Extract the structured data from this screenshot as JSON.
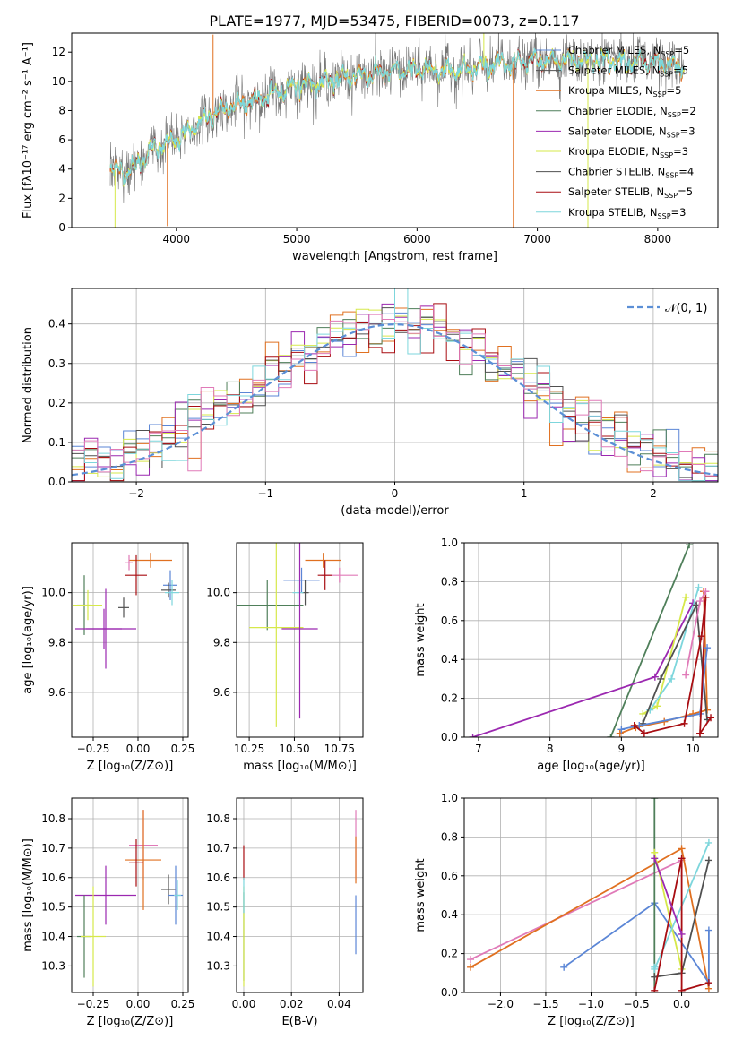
{
  "title": "PLATE=1977, MJD=53475, FIBERID=0073, z=0.117",
  "colors": {
    "gray": "#777777",
    "blue": "#5b86d6",
    "orange": "#e07020",
    "green": "#4f7f5a",
    "purple": "#9b28b0",
    "yellow": "#d6e84a",
    "dark": "#505050",
    "red": "#a80d12",
    "cyan": "#7dd6dc",
    "pink": "#e07ab8",
    "gaussian": "#5b8fd6"
  },
  "chart_data": [
    {
      "id": "spectrum",
      "type": "line",
      "xlabel": "wavelength [Angstrom, rest frame]",
      "ylabel": "Flux [fλ10⁻¹⁷ erg cm⁻² s⁻¹ A⁻¹]",
      "xlim": [
        3130,
        8500
      ],
      "ylim": [
        0,
        13.3
      ],
      "xticks": [
        4000,
        5000,
        6000,
        7000,
        8000
      ],
      "yticks": [
        0,
        2,
        4,
        6,
        8,
        10,
        12
      ],
      "grid": false,
      "legend_position": "right",
      "legend": [
        {
          "label": "Chabrier MILES, N",
          "sub": "SSP",
          "suffix": "=5",
          "color": "blue"
        },
        {
          "label": "Salpeter MILES, N",
          "sub": "SSP",
          "suffix": "=5",
          "color": "dark"
        },
        {
          "label": "Kroupa MILES, N",
          "sub": "SSP",
          "suffix": "=5",
          "color": "orange"
        },
        {
          "label": "Chabrier ELODIE, N",
          "sub": "SSP",
          "suffix": "=2",
          "color": "green"
        },
        {
          "label": "Salpeter ELODIE, N",
          "sub": "SSP",
          "suffix": "=3",
          "color": "purple"
        },
        {
          "label": "Kroupa ELODIE, N",
          "sub": "SSP",
          "suffix": "=3",
          "color": "yellow"
        },
        {
          "label": "Chabrier STELIB, N",
          "sub": "SSP",
          "suffix": "=4",
          "color": "dark"
        },
        {
          "label": "Salpeter STELIB, N",
          "sub": "SSP",
          "suffix": "=5",
          "color": "red"
        },
        {
          "label": "Kroupa STELIB, N",
          "sub": "SSP",
          "suffix": "=3",
          "color": "cyan"
        }
      ],
      "wavelength_range": [
        3450,
        8220
      ],
      "continuum_anchors": [
        [
          3450,
          4.0
        ],
        [
          3600,
          3.8
        ],
        [
          3800,
          5.3
        ],
        [
          4000,
          6.0
        ],
        [
          4200,
          7.2
        ],
        [
          4400,
          8.2
        ],
        [
          4600,
          8.6
        ],
        [
          4800,
          9.1
        ],
        [
          5000,
          9.8
        ],
        [
          5200,
          9.9
        ],
        [
          5500,
          10.4
        ],
        [
          6000,
          10.8
        ],
        [
          6400,
          10.8
        ],
        [
          6600,
          11.1
        ],
        [
          7000,
          11.4
        ],
        [
          7500,
          11.5
        ],
        [
          8000,
          11.2
        ],
        [
          8220,
          11.0
        ]
      ]
    },
    {
      "id": "residuals",
      "type": "histogram",
      "xlabel": "(data-model)/error",
      "ylabel": "Normed distribution",
      "xlim": [
        -2.5,
        2.5
      ],
      "ylim": [
        0,
        0.49
      ],
      "xticks": [
        -2,
        -1,
        0,
        1,
        2
      ],
      "xtick_labels": [
        "−2",
        "−1",
        "0",
        "1",
        "2"
      ],
      "yticks": [
        0.0,
        0.1,
        0.2,
        0.3,
        0.4
      ],
      "grid": true,
      "legend_position": "top-right",
      "legend_label": "𝒩(0, 1)",
      "bin_width": 0.1,
      "series_colors": [
        "blue",
        "orange",
        "green",
        "purple",
        "yellow",
        "dark",
        "red",
        "cyan",
        "pink"
      ]
    },
    {
      "id": "age_vs_Z",
      "type": "errorbar",
      "xlabel": "Z [log₁₀(Z/Z⊙)]",
      "ylabel": "age  [log₁₀(age/yr)]",
      "xlim": [
        -0.37,
        0.28
      ],
      "ylim": [
        9.42,
        10.2
      ],
      "xticks": [
        -0.25,
        0.0,
        0.25
      ],
      "xtick_labels": [
        "−0.25",
        "0.00",
        "0.25"
      ],
      "yticks": [
        9.6,
        9.8,
        10.0
      ],
      "grid": true,
      "points": [
        {
          "color": "orange",
          "x": 0.07,
          "xerr": 0.12,
          "y": 10.13,
          "yerr": 0.03
        },
        {
          "color": "pink",
          "x": -0.05,
          "xerr": 0.02,
          "y": 10.12,
          "yerr": 0.03
        },
        {
          "color": "red",
          "x": -0.01,
          "xerr": 0.06,
          "y": 10.07,
          "yerr": 0.08
        },
        {
          "color": "blue",
          "x": 0.18,
          "xerr": 0.04,
          "y": 10.03,
          "yerr": 0.06
        },
        {
          "color": "dark",
          "x": 0.17,
          "xerr": 0.04,
          "y": 10.01,
          "yerr": 0.03
        },
        {
          "color": "cyan",
          "x": 0.19,
          "xerr": 0.04,
          "y": 10.0,
          "yerr": 0.05
        },
        {
          "color": "green",
          "x": -0.3,
          "xerr": 0.04,
          "y": 9.95,
          "yerr": 0.12
        },
        {
          "color": "yellow",
          "x": -0.28,
          "xerr": 0.08,
          "y": 9.95,
          "yerr": 0.06
        },
        {
          "color": "dark",
          "x": -0.08,
          "xerr": 0.03,
          "y": 9.94,
          "yerr": 0.04
        },
        {
          "color": "purple",
          "x": -0.18,
          "xerr": 0.17,
          "y": 9.855,
          "yerr": 0.16
        },
        {
          "color": "purple",
          "x": -0.19,
          "xerr": 0.1,
          "y": 9.855,
          "yerr": 0.08
        }
      ]
    },
    {
      "id": "age_vs_mass",
      "type": "errorbar",
      "xlabel": "mass [log₁₀(M/M⊙)]",
      "ylabel": "",
      "xlim": [
        10.18,
        10.88
      ],
      "ylim": [
        9.42,
        10.2
      ],
      "xticks": [
        10.25,
        10.5,
        10.75
      ],
      "xtick_labels": [
        "10.25",
        "10.50",
        "10.75"
      ],
      "yticks": [
        9.6,
        9.8,
        10.0
      ],
      "grid": true,
      "points": [
        {
          "color": "orange",
          "x": 10.66,
          "xerr": 0.1,
          "y": 10.13,
          "yerr": 0.03
        },
        {
          "color": "pink",
          "x": 10.75,
          "xerr": 0.1,
          "y": 10.07,
          "yerr": 0.03
        },
        {
          "color": "red",
          "x": 10.67,
          "xerr": 0.04,
          "y": 10.07,
          "yerr": 0.06
        },
        {
          "color": "blue",
          "x": 10.54,
          "xerr": 0.1,
          "y": 10.05,
          "yerr": 0.05
        },
        {
          "color": "dark",
          "x": 10.56,
          "xerr": 0.02,
          "y": 10.0,
          "yerr": 0.05
        },
        {
          "color": "cyan",
          "x": 10.52,
          "xerr": 0.03,
          "y": 10.0,
          "yerr": 0.05
        },
        {
          "color": "green",
          "x": 10.35,
          "xerr": 0.2,
          "y": 9.95,
          "yerr": 0.1
        },
        {
          "color": "yellow",
          "x": 10.4,
          "xerr": 0.15,
          "y": 9.86,
          "yerr": 0.4
        },
        {
          "color": "purple",
          "x": 10.53,
          "xerr": 0.1,
          "y": 9.855,
          "yerr": 0.36
        }
      ]
    },
    {
      "id": "weight_vs_age",
      "type": "line",
      "xlabel": "age  [log₁₀(age/yr)]",
      "ylabel": "mass weight",
      "xlim": [
        6.8,
        10.35
      ],
      "ylim": [
        0.0,
        1.0
      ],
      "xticks": [
        7,
        8,
        9,
        10
      ],
      "yticks": [
        0.0,
        0.2,
        0.4,
        0.6,
        0.8,
        1.0
      ],
      "grid": true,
      "series": [
        {
          "color": "green",
          "x": [
            8.85,
            9.95
          ],
          "y": [
            0.0,
            0.99
          ]
        },
        {
          "color": "purple",
          "x": [
            6.92,
            9.47,
            10.0
          ],
          "y": [
            0.0,
            0.31,
            0.69
          ]
        },
        {
          "color": "orange",
          "x": [
            8.98,
            9.2,
            9.6,
            10.0,
            10.2,
            10.15
          ],
          "y": [
            0.02,
            0.05,
            0.08,
            0.12,
            0.14,
            0.75
          ]
        },
        {
          "color": "yellow",
          "x": [
            9.3,
            9.5,
            9.9
          ],
          "y": [
            0.12,
            0.16,
            0.72
          ]
        },
        {
          "color": "cyan",
          "x": [
            9.4,
            9.7,
            10.08
          ],
          "y": [
            0.14,
            0.3,
            0.77
          ]
        },
        {
          "color": "dark",
          "x": [
            9.3,
            9.55,
            10.05,
            10.2
          ],
          "y": [
            0.07,
            0.3,
            0.68,
            0.09
          ]
        },
        {
          "color": "blue",
          "x": [
            9.0,
            9.25,
            10.1,
            10.2
          ],
          "y": [
            0.04,
            0.06,
            0.12,
            0.46
          ]
        },
        {
          "color": "red",
          "x": [
            9.18,
            9.32,
            9.88,
            10.12,
            10.18,
            10.1,
            10.25
          ],
          "y": [
            0.06,
            0.02,
            0.07,
            0.52,
            0.72,
            0.02,
            0.1
          ]
        },
        {
          "color": "pink",
          "x": [
            9.9,
            10.1,
            10.18
          ],
          "y": [
            0.32,
            0.7,
            0.75
          ]
        }
      ]
    },
    {
      "id": "mass_vs_Z",
      "type": "errorbar",
      "xlabel": "Z [log₁₀(Z/Z⊙)]",
      "ylabel": "mass [log₁₀(M/M⊙)]",
      "xlim": [
        -0.37,
        0.28
      ],
      "ylim": [
        10.21,
        10.87
      ],
      "xticks": [
        -0.25,
        0.0,
        0.25
      ],
      "xtick_labels": [
        "−0.25",
        "0.00",
        "0.25"
      ],
      "yticks": [
        10.3,
        10.4,
        10.5,
        10.6,
        10.7,
        10.8
      ],
      "grid": true,
      "points": [
        {
          "color": "pink",
          "x": 0.03,
          "xerr": 0.08,
          "y": 10.71,
          "yerr": 0.12
        },
        {
          "color": "orange",
          "x": 0.03,
          "xerr": 0.1,
          "y": 10.66,
          "yerr": 0.17
        },
        {
          "color": "red",
          "x": -0.01,
          "xerr": 0.04,
          "y": 10.65,
          "yerr": 0.08
        },
        {
          "color": "dark",
          "x": 0.17,
          "xerr": 0.04,
          "y": 10.56,
          "yerr": 0.05
        },
        {
          "color": "blue",
          "x": 0.21,
          "xerr": 0.04,
          "y": 10.54,
          "yerr": 0.1
        },
        {
          "color": "cyan",
          "x": 0.22,
          "xerr": 0.02,
          "y": 10.54,
          "yerr": 0.05
        },
        {
          "color": "purple",
          "x": -0.18,
          "xerr": 0.17,
          "y": 10.54,
          "yerr": 0.1
        },
        {
          "color": "green",
          "x": -0.3,
          "xerr": 0.04,
          "y": 10.4,
          "yerr": 0.14
        },
        {
          "color": "yellow",
          "x": -0.25,
          "xerr": 0.07,
          "y": 10.4,
          "yerr": 0.17
        }
      ]
    },
    {
      "id": "mass_vs_ebv",
      "type": "errorbar",
      "xlabel": "E(B-V)",
      "ylabel": "",
      "xlim": [
        -0.003,
        0.05
      ],
      "ylim": [
        10.21,
        10.87
      ],
      "xticks": [
        0.0,
        0.02,
        0.04
      ],
      "xtick_labels": [
        "0.00",
        "0.02",
        "0.04"
      ],
      "yticks": [
        10.3,
        10.4,
        10.5,
        10.6,
        10.7,
        10.8
      ],
      "grid": true,
      "points": [
        {
          "color": "red",
          "x": 0.0,
          "xerr": 0,
          "y": 10.65,
          "yerr": 0.06
        },
        {
          "color": "green",
          "x": 0.0,
          "xerr": 0,
          "y": 10.4,
          "yerr": 0.15
        },
        {
          "color": "yellow",
          "x": 0.0,
          "xerr": 0,
          "y": 10.4,
          "yerr": 0.17
        },
        {
          "color": "cyan",
          "x": 0.0,
          "xerr": 0,
          "y": 10.54,
          "yerr": 0.06
        },
        {
          "color": "pink",
          "x": 0.047,
          "xerr": 0,
          "y": 10.71,
          "yerr": 0.12
        },
        {
          "color": "orange",
          "x": 0.047,
          "xerr": 0,
          "y": 10.66,
          "yerr": 0.08
        },
        {
          "color": "blue",
          "x": 0.047,
          "xerr": 0,
          "y": 10.44,
          "yerr": 0.1
        }
      ]
    },
    {
      "id": "weight_vs_Z",
      "type": "line",
      "xlabel": "Z [log₁₀(Z/Z⊙)]",
      "ylabel": "mass weight",
      "xlim": [
        -2.4,
        0.4
      ],
      "ylim": [
        0.0,
        1.0
      ],
      "xticks": [
        -2.0,
        -1.5,
        -1.0,
        -0.5,
        0.0
      ],
      "xtick_labels": [
        "−2.0",
        "−1.5",
        "−1.0",
        "−0.5",
        "0.0"
      ],
      "yticks": [
        0.0,
        0.2,
        0.4,
        0.6,
        0.8,
        1.0
      ],
      "grid": true,
      "series": [
        {
          "color": "pink",
          "x": [
            -2.33,
            0.0
          ],
          "y": [
            0.17,
            0.68
          ]
        },
        {
          "color": "orange",
          "x": [
            -2.33,
            0.0,
            0.3
          ],
          "y": [
            0.13,
            0.74,
            0.02
          ]
        },
        {
          "color": "blue",
          "x": [
            -1.3,
            -0.3,
            0.3,
            0.3
          ],
          "y": [
            0.13,
            0.46,
            0.05,
            0.32
          ]
        },
        {
          "color": "green",
          "x": [
            -0.3,
            -0.3
          ],
          "y": [
            0.0,
            1.0
          ]
        },
        {
          "color": "yellow",
          "x": [
            -0.3,
            0.0
          ],
          "y": [
            0.72,
            0.12
          ]
        },
        {
          "color": "cyan",
          "x": [
            -0.3,
            -0.3,
            0.3
          ],
          "y": [
            0.13,
            0.12,
            0.77
          ]
        },
        {
          "color": "dark",
          "x": [
            -0.3,
            0.0,
            0.3
          ],
          "y": [
            0.08,
            0.1,
            0.68
          ]
        },
        {
          "color": "red",
          "x": [
            -0.3,
            0.0,
            0.0,
            0.3
          ],
          "y": [
            0.01,
            0.69,
            0.01,
            0.05
          ]
        },
        {
          "color": "purple",
          "x": [
            -0.3,
            0.0
          ],
          "y": [
            0.69,
            0.3
          ]
        }
      ]
    }
  ]
}
